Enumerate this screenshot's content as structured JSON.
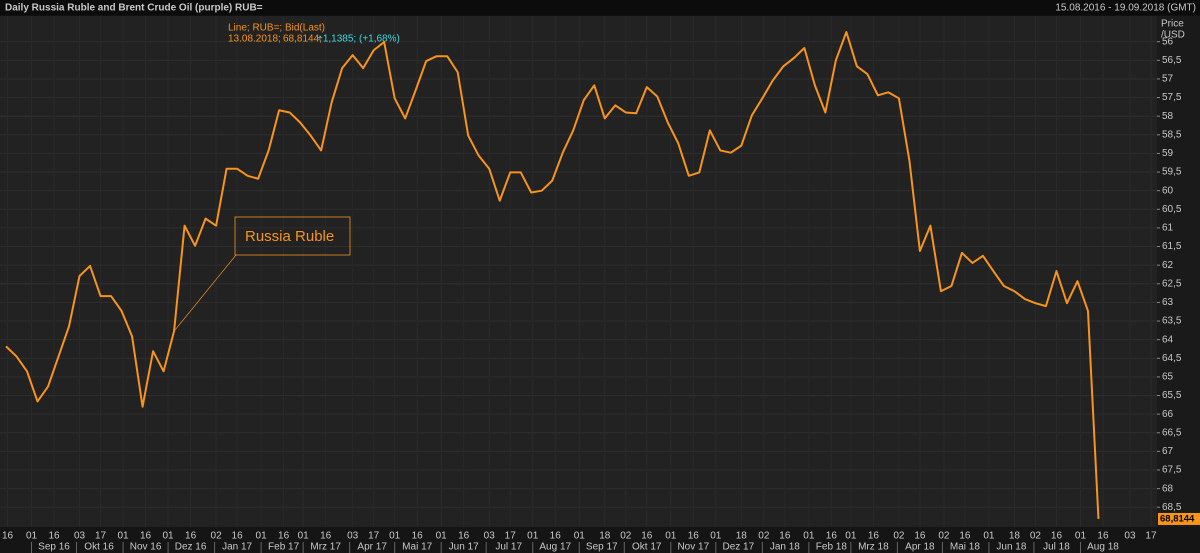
{
  "chart_data": {
    "type": "line",
    "title": "Daily Russia Ruble and Brent Crude Oil (purple) RUB=",
    "date_range": "15.08.2016 - 19.09.2018 (GMT)",
    "y_axis_label": [
      "Price",
      "/USD"
    ],
    "info_header": "Line; RUB=; Bid(Last)",
    "info_date": "13.08.2018;",
    "info_value": "68,8144;",
    "info_change": "+1,1385; (+1,68%)",
    "last_value_label": "68,8144",
    "grid": true,
    "x": [
      "2016-08-15",
      "2016-08-22",
      "2016-08-29",
      "2016-09-05",
      "2016-09-12",
      "2016-09-19",
      "2016-09-26",
      "2016-10-03",
      "2016-10-10",
      "2016-10-17",
      "2016-10-24",
      "2016-10-31",
      "2016-11-07",
      "2016-11-14",
      "2016-11-21",
      "2016-11-28",
      "2016-12-05",
      "2016-12-12",
      "2016-12-19",
      "2016-12-26",
      "2017-01-02",
      "2017-01-09",
      "2017-01-16",
      "2017-01-23",
      "2017-01-30",
      "2017-02-06",
      "2017-02-13",
      "2017-02-20",
      "2017-02-27",
      "2017-03-06",
      "2017-03-13",
      "2017-03-20",
      "2017-03-27",
      "2017-04-03",
      "2017-04-10",
      "2017-04-17",
      "2017-04-24",
      "2017-05-01",
      "2017-05-08",
      "2017-05-15",
      "2017-05-22",
      "2017-05-29",
      "2017-06-05",
      "2017-06-12",
      "2017-06-19",
      "2017-06-26",
      "2017-07-03",
      "2017-07-10",
      "2017-07-17",
      "2017-07-24",
      "2017-07-31",
      "2017-08-07",
      "2017-08-14",
      "2017-08-21",
      "2017-08-28",
      "2017-09-04",
      "2017-09-11",
      "2017-09-18",
      "2017-09-25",
      "2017-10-02",
      "2017-10-09",
      "2017-10-16",
      "2017-10-23",
      "2017-10-30",
      "2017-11-06",
      "2017-11-13",
      "2017-11-20",
      "2017-11-27",
      "2017-12-04",
      "2017-12-11",
      "2017-12-18",
      "2017-12-25",
      "2018-01-01",
      "2018-01-08",
      "2018-01-15",
      "2018-01-22",
      "2018-01-29",
      "2018-02-05",
      "2018-02-12",
      "2018-02-19",
      "2018-02-26",
      "2018-03-05",
      "2018-03-12",
      "2018-03-19",
      "2018-03-26",
      "2018-04-02",
      "2018-04-09",
      "2018-04-16",
      "2018-04-23",
      "2018-04-30",
      "2018-05-07",
      "2018-05-14",
      "2018-05-21",
      "2018-05-28",
      "2018-06-04",
      "2018-06-11",
      "2018-06-18",
      "2018-06-25",
      "2018-07-02",
      "2018-07-09",
      "2018-07-16",
      "2018-07-23",
      "2018-07-30",
      "2018-08-06",
      "2018-08-13"
    ],
    "series": [
      {
        "name": "Russia Ruble",
        "color": "#f7941d",
        "values": [
          64.18,
          64.45,
          64.85,
          65.66,
          65.26,
          64.45,
          63.64,
          62.29,
          62.02,
          62.83,
          62.83,
          63.23,
          63.91,
          65.8,
          64.31,
          64.85,
          63.77,
          60.94,
          61.48,
          60.75,
          60.94,
          59.41,
          59.41,
          59.6,
          59.68,
          58.92,
          57.84,
          57.9,
          58.17,
          58.52,
          58.92,
          57.63,
          56.71,
          56.36,
          56.71,
          56.23,
          56.01,
          57.52,
          58.06,
          57.3,
          56.52,
          56.39,
          56.39,
          56.82,
          58.52,
          59.06,
          59.41,
          60.27,
          59.51,
          59.51,
          60.05,
          60,
          59.73,
          58.98,
          58.38,
          57.57,
          57.17,
          58.06,
          57.71,
          57.9,
          57.92,
          57.22,
          57.47,
          58.17,
          58.73,
          59.6,
          59.51,
          58.38,
          58.92,
          58.98,
          58.79,
          57.98,
          57.52,
          57.04,
          56.66,
          56.44,
          56.17,
          57.17,
          57.9,
          56.5,
          55.74,
          56.66,
          56.87,
          57.44,
          57.36,
          57.52,
          59.19,
          61.62,
          60.94,
          62.7,
          62.56,
          61.67,
          61.94,
          61.75,
          62.16,
          62.56,
          62.7,
          62.91,
          63.02,
          63.1,
          62.16,
          63.02,
          62.43,
          63.23,
          68.8144
        ]
      }
    ],
    "xlim": [
      "2016-08-11",
      "2018-09-21"
    ],
    "ylim": [
      69.03,
      55.31
    ],
    "yticks": [
      56,
      {
        "value": 56.5,
        "label": "56,5"
      },
      57,
      {
        "value": 57.5,
        "label": "57,5"
      },
      58,
      {
        "value": 58.5,
        "label": "58,5"
      },
      59,
      {
        "value": 59.5,
        "label": "59,5"
      },
      60,
      {
        "value": 60.5,
        "label": "60,5"
      },
      61,
      {
        "value": 61.5,
        "label": "61,5"
      },
      62,
      {
        "value": 62.5,
        "label": "62,5"
      },
      63,
      {
        "value": 63.5,
        "label": "63,5"
      },
      64,
      {
        "value": 64.5,
        "label": "64,5"
      },
      65,
      {
        "value": 65.5,
        "label": "65,5"
      },
      66,
      {
        "value": 66.5,
        "label": "66,5"
      },
      67,
      {
        "value": 67.5,
        "label": "67,5"
      },
      68,
      {
        "value": 68.5,
        "label": "68,5"
      }
    ],
    "xticks": [
      {
        "value": "2016-08-16",
        "label": "16"
      },
      {
        "value": "2016-09-01",
        "label": "01"
      },
      {
        "value": "2016-09-16",
        "label": "16"
      },
      {
        "value": "2016-10-03",
        "label": "03"
      },
      {
        "value": "2016-10-17",
        "label": "17"
      },
      {
        "value": "2016-11-01",
        "label": "01"
      },
      {
        "value": "2016-11-16",
        "label": "16"
      },
      {
        "value": "2016-12-01",
        "label": "01"
      },
      {
        "value": "2016-12-16",
        "label": "16"
      },
      {
        "value": "2017-01-02",
        "label": "02"
      },
      {
        "value": "2017-01-16",
        "label": "16"
      },
      {
        "value": "2017-02-01",
        "label": "01"
      },
      {
        "value": "2017-02-16",
        "label": "16"
      },
      {
        "value": "2017-03-01",
        "label": "01"
      },
      {
        "value": "2017-03-16",
        "label": "16"
      },
      {
        "value": "2017-04-03",
        "label": "03"
      },
      {
        "value": "2017-04-17",
        "label": "17"
      },
      {
        "value": "2017-05-01",
        "label": "01"
      },
      {
        "value": "2017-05-16",
        "label": "16"
      },
      {
        "value": "2017-06-01",
        "label": "01"
      },
      {
        "value": "2017-06-16",
        "label": "16"
      },
      {
        "value": "2017-07-03",
        "label": "03"
      },
      {
        "value": "2017-07-17",
        "label": "17"
      },
      {
        "value": "2017-08-01",
        "label": "01"
      },
      {
        "value": "2017-08-16",
        "label": "16"
      },
      {
        "value": "2017-09-01",
        "label": "01"
      },
      {
        "value": "2017-09-18",
        "label": "18"
      },
      {
        "value": "2017-10-02",
        "label": "02"
      },
      {
        "value": "2017-10-16",
        "label": "16"
      },
      {
        "value": "2017-11-01",
        "label": "01"
      },
      {
        "value": "2017-11-16",
        "label": "16"
      },
      {
        "value": "2017-12-01",
        "label": "01"
      },
      {
        "value": "2017-12-18",
        "label": "18"
      },
      {
        "value": "2018-01-02",
        "label": "02"
      },
      {
        "value": "2018-01-16",
        "label": "16"
      },
      {
        "value": "2018-02-01",
        "label": "01"
      },
      {
        "value": "2018-02-16",
        "label": "16"
      },
      {
        "value": "2018-03-01",
        "label": "01"
      },
      {
        "value": "2018-03-16",
        "label": "16"
      },
      {
        "value": "2018-04-02",
        "label": "02"
      },
      {
        "value": "2018-04-16",
        "label": "16"
      },
      {
        "value": "2018-05-02",
        "label": "02"
      },
      {
        "value": "2018-05-16",
        "label": "16"
      },
      {
        "value": "2018-06-01",
        "label": "01"
      },
      {
        "value": "2018-06-18",
        "label": "18"
      },
      {
        "value": "2018-07-02",
        "label": "02"
      },
      {
        "value": "2018-07-16",
        "label": "16"
      },
      {
        "value": "2018-08-01",
        "label": "01"
      },
      {
        "value": "2018-08-16",
        "label": "16"
      },
      {
        "value": "2018-09-03",
        "label": "03"
      },
      {
        "value": "2018-09-17",
        "label": "17"
      }
    ],
    "month_ticks": [
      {
        "value": "2016-09-01",
        "label": "Sep 16"
      },
      {
        "value": "2016-10-01",
        "label": "Okt 16"
      },
      {
        "value": "2016-11-01",
        "label": "Nov 16"
      },
      {
        "value": "2016-12-01",
        "label": "Dez 16"
      },
      {
        "value": "2017-01-01",
        "label": "Jan 17"
      },
      {
        "value": "2017-02-01",
        "label": "Feb 17"
      },
      {
        "value": "2017-03-01",
        "label": "Mrz 17"
      },
      {
        "value": "2017-04-01",
        "label": "Apr 17"
      },
      {
        "value": "2017-05-01",
        "label": "Mai 17"
      },
      {
        "value": "2017-06-01",
        "label": "Jun 17"
      },
      {
        "value": "2017-07-01",
        "label": "Jul 17"
      },
      {
        "value": "2017-08-01",
        "label": "Aug 17"
      },
      {
        "value": "2017-09-01",
        "label": "Sep 17"
      },
      {
        "value": "2017-10-01",
        "label": "Okt 17"
      },
      {
        "value": "2017-11-01",
        "label": "Nov 17"
      },
      {
        "value": "2017-12-01",
        "label": "Dez 17"
      },
      {
        "value": "2018-01-01",
        "label": "Jan 18"
      },
      {
        "value": "2018-02-01",
        "label": "Feb 18"
      },
      {
        "value": "2018-03-01",
        "label": "Mrz 18"
      },
      {
        "value": "2018-04-01",
        "label": "Apr 18"
      },
      {
        "value": "2018-05-01",
        "label": "Mai 18"
      },
      {
        "value": "2018-06-01",
        "label": "Jun 18"
      },
      {
        "value": "2018-07-01",
        "label": "Jul 18"
      },
      {
        "value": "2018-08-01",
        "label": "Aug 18"
      }
    ]
  }
}
